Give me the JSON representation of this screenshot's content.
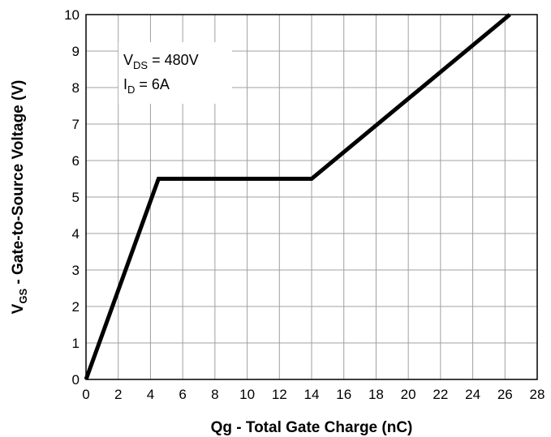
{
  "chart_data": {
    "type": "line",
    "x_label_main": "Qg - Total Gate Charge (nC)",
    "y_label_symbol": "V",
    "y_label_subscript": "GS",
    "y_label_rest": " - Gate-to-Source Voltage (V)",
    "xlim": [
      0,
      28
    ],
    "ylim": [
      0,
      10
    ],
    "x_ticks": [
      "0",
      "2",
      "4",
      "6",
      "8",
      "10",
      "12",
      "14",
      "16",
      "18",
      "20",
      "22",
      "24",
      "26",
      "28"
    ],
    "y_ticks": [
      "0",
      "1",
      "2",
      "3",
      "4",
      "5",
      "6",
      "7",
      "8",
      "9",
      "10"
    ],
    "grid": true,
    "series": [
      {
        "x": [
          0,
          4.5,
          14,
          26.3
        ],
        "y": [
          0,
          5.5,
          5.5,
          10
        ]
      }
    ],
    "annotations": [
      {
        "symbol": "V",
        "subscript": "DS",
        "text": " = 480V"
      },
      {
        "symbol": "I",
        "subscript": "D",
        "text": " = 6A"
      }
    ]
  }
}
